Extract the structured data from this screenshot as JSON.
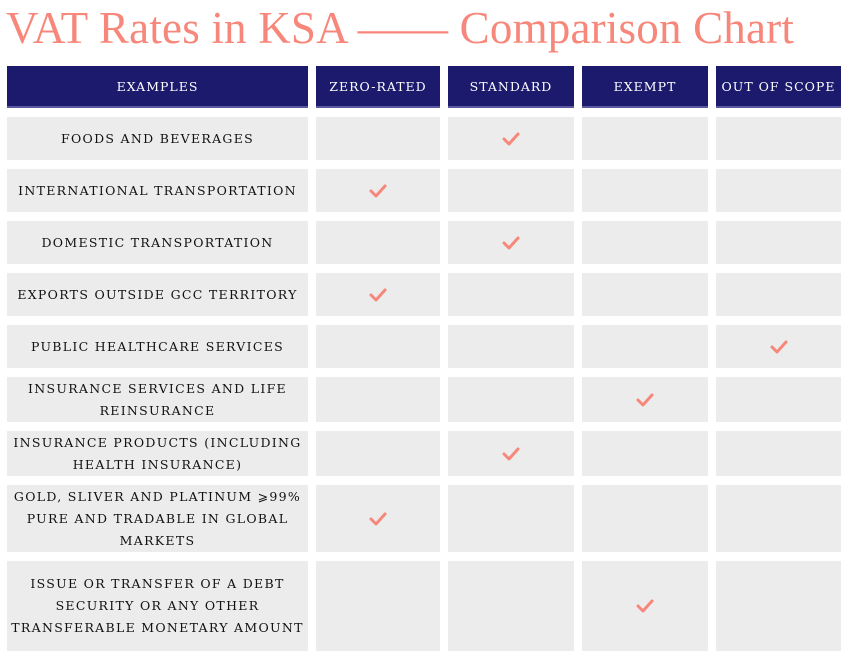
{
  "title": "VAT Rates in KSA —— Comparison Chart",
  "accent_color": "#f7877a",
  "header_color": "#1b1a6d",
  "cell_color": "#ececec",
  "columns": [
    "EXAMPLES",
    "ZERO-RATED",
    "STANDARD",
    "EXEMPT",
    "OUT OF SCOPE"
  ],
  "check_icon": "checkmark-icon",
  "rows": [
    {
      "label": "FOODS AND BEVERAGES",
      "category": "STANDARD"
    },
    {
      "label": "INTERNATIONAL TRANSPORTATION",
      "category": "ZERO-RATED"
    },
    {
      "label": "DOMESTIC TRANSPORTATION",
      "category": "STANDARD"
    },
    {
      "label": "EXPORTS OUTSIDE GCC TERRITORY",
      "category": "ZERO-RATED"
    },
    {
      "label": "PUBLIC HEALTHCARE SERVICES",
      "category": "OUT OF SCOPE"
    },
    {
      "label": "INSURANCE SERVICES AND LIFE REINSURANCE",
      "category": "EXEMPT"
    },
    {
      "label": "INSURANCE PRODUCTS (INCLUDING HEALTH INSURANCE)",
      "category": "STANDARD"
    },
    {
      "label": "GOLD, SLIVER AND PLATINUM ⩾99% PURE AND TRADABLE IN GLOBAL MARKETS",
      "category": "ZERO-RATED"
    },
    {
      "label": "ISSUE OR TRANSFER OF A DEBT SECURITY OR ANY OTHER TRANSFERABLE MONETARY AMOUNT",
      "category": "EXEMPT"
    }
  ]
}
